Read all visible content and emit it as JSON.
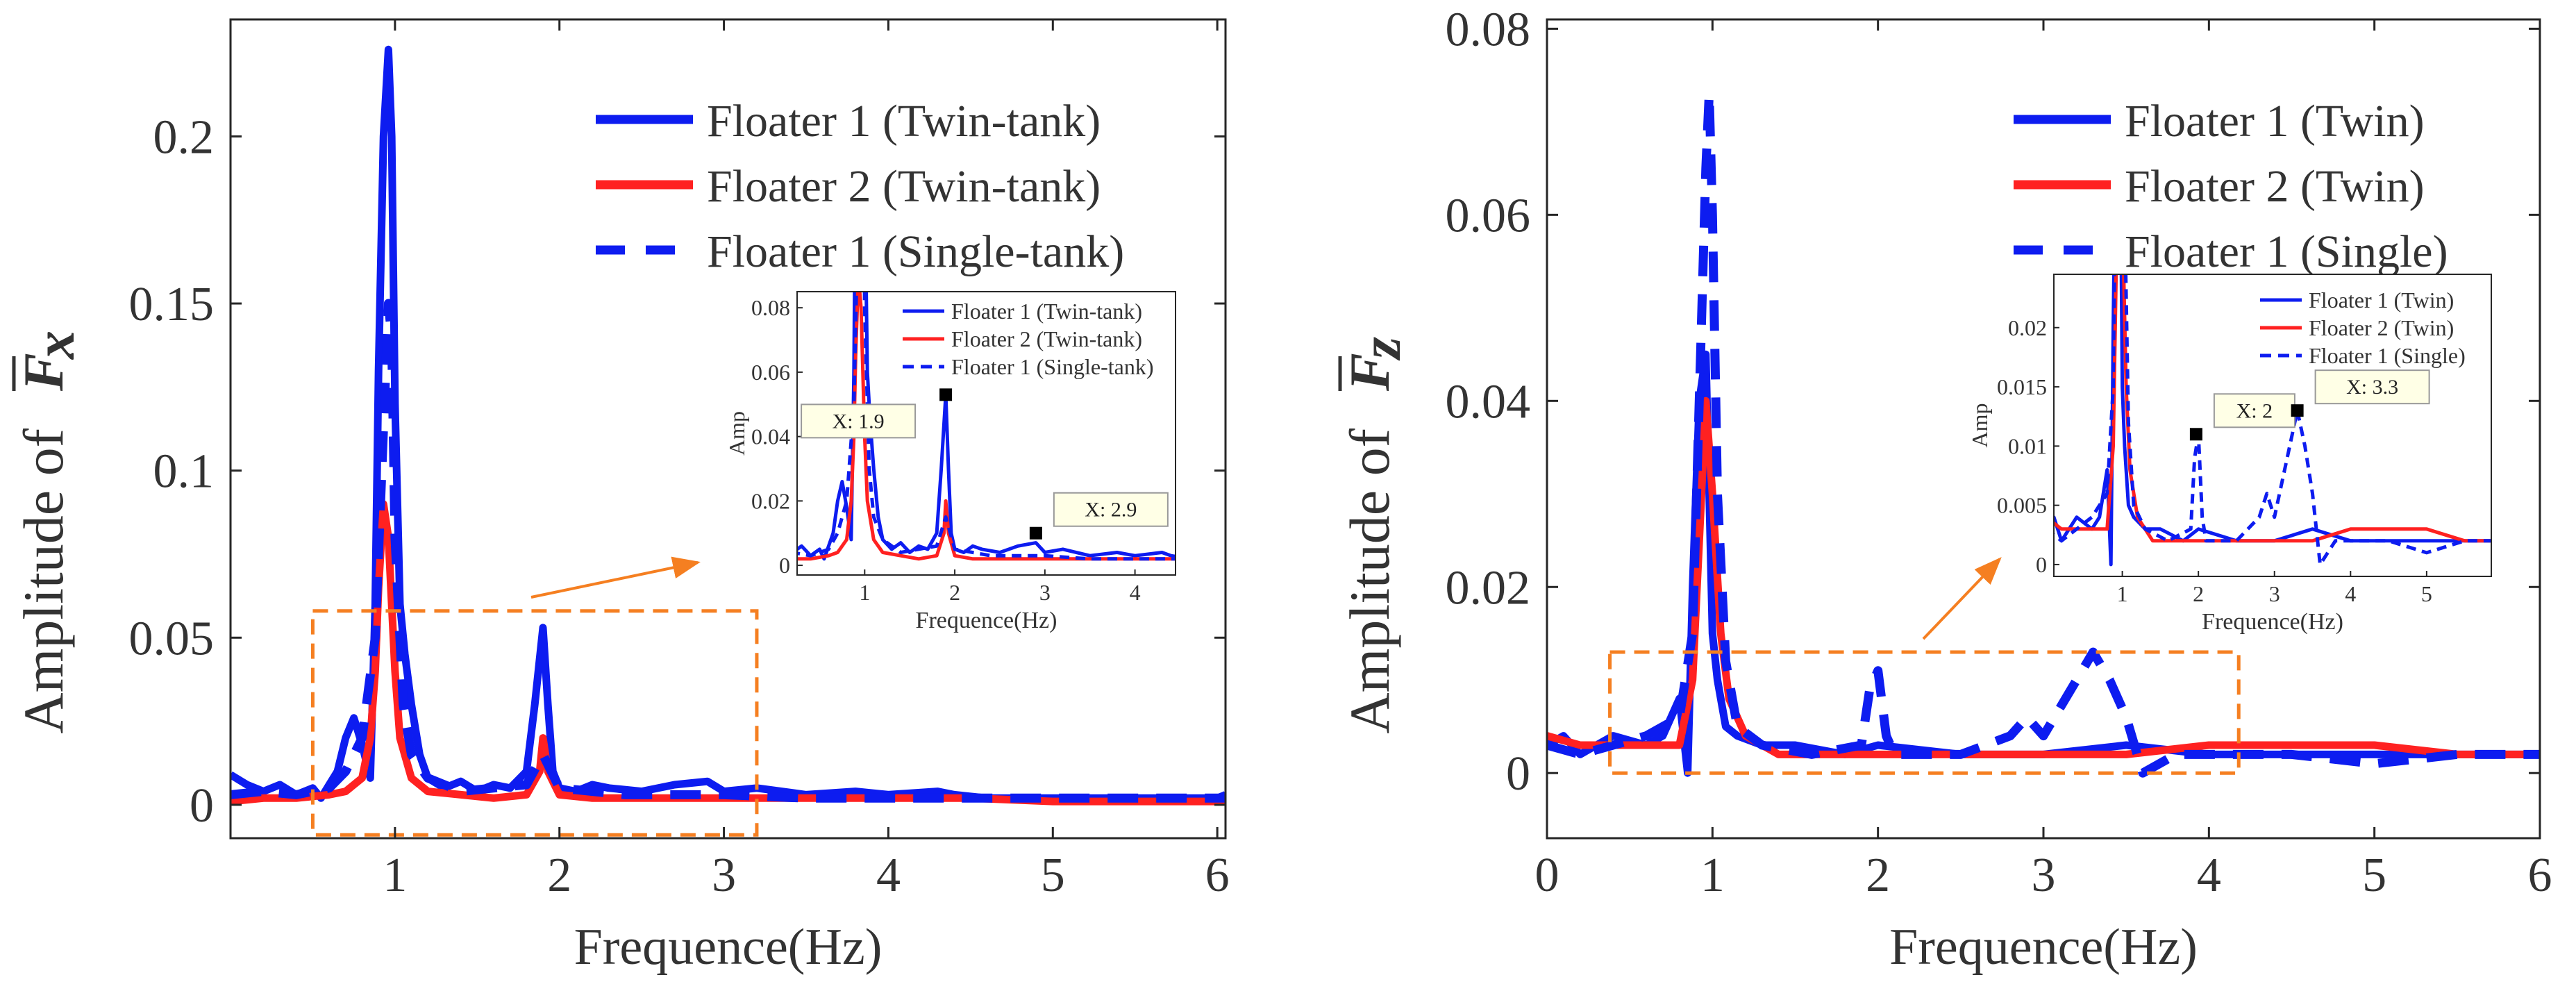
{
  "colors": {
    "blue": "#0d1cf0",
    "red": "#ff2121",
    "orange": "#f57f21",
    "axis": "#262626",
    "tip_bg": "#ffffe6"
  },
  "chart_data": [
    {
      "id": "left",
      "type": "line",
      "xlabel": "Frequence(Hz)",
      "ylabel_prefix": "Amplitude of",
      "ylabel_symbol": "F",
      "ylabel_subscript": "x",
      "xlim": [
        0,
        6.05
      ],
      "ylim": [
        -0.01,
        0.235
      ],
      "xticks": [
        {
          "v": 1,
          "label": "1"
        },
        {
          "v": 2,
          "label": "2"
        },
        {
          "v": 3,
          "label": "3"
        },
        {
          "v": 4,
          "label": "4"
        },
        {
          "v": 5,
          "label": "5"
        },
        {
          "v": 6,
          "label": "6"
        }
      ],
      "yticks": [
        {
          "v": 0,
          "label": "0"
        },
        {
          "v": 0.05,
          "label": "0.05"
        },
        {
          "v": 0.1,
          "label": "0.1"
        },
        {
          "v": 0.15,
          "label": "0.15"
        },
        {
          "v": 0.2,
          "label": "0.2"
        }
      ],
      "legend_position": "top-right",
      "series": [
        {
          "name": "Floater 1 (Twin-tank)",
          "color": "blue",
          "style": "solid",
          "x": [
            0,
            0.1,
            0.2,
            0.3,
            0.4,
            0.5,
            0.55,
            0.6,
            0.65,
            0.7,
            0.75,
            0.8,
            0.85,
            0.88,
            0.9,
            0.93,
            0.96,
            0.98,
            1.0,
            1.03,
            1.06,
            1.1,
            1.15,
            1.2,
            1.3,
            1.4,
            1.5,
            1.6,
            1.7,
            1.8,
            1.85,
            1.9,
            1.93,
            1.96,
            2.0,
            2.1,
            2.2,
            2.3,
            2.5,
            2.7,
            2.9,
            3.0,
            3.2,
            3.5,
            3.8,
            4.0,
            4.3,
            4.4,
            4.6,
            5.0,
            5.5,
            6.0,
            6.05
          ],
          "y": [
            0.009,
            0.006,
            0.004,
            0.006,
            0.003,
            0.005,
            0.002,
            0.006,
            0.01,
            0.02,
            0.026,
            0.018,
            0.008,
            0.06,
            0.13,
            0.2,
            0.226,
            0.2,
            0.12,
            0.06,
            0.045,
            0.03,
            0.015,
            0.008,
            0.005,
            0.007,
            0.004,
            0.006,
            0.005,
            0.01,
            0.03,
            0.053,
            0.03,
            0.01,
            0.005,
            0.004,
            0.006,
            0.005,
            0.004,
            0.006,
            0.007,
            0.004,
            0.005,
            0.003,
            0.004,
            0.003,
            0.004,
            0.003,
            0.002,
            0.002,
            0.002,
            0.002,
            0.003
          ]
        },
        {
          "name": "Floater 2 (Twin-tank)",
          "color": "red",
          "style": "solid",
          "x": [
            0,
            0.2,
            0.4,
            0.6,
            0.7,
            0.8,
            0.85,
            0.88,
            0.9,
            0.93,
            0.96,
            0.98,
            1.0,
            1.03,
            1.1,
            1.2,
            1.4,
            1.6,
            1.8,
            1.88,
            1.9,
            1.93,
            2.0,
            2.2,
            2.5,
            3.0,
            3.5,
            4.0,
            4.5,
            5.0,
            5.5,
            6.05
          ],
          "y": [
            0.001,
            0.002,
            0.002,
            0.003,
            0.004,
            0.008,
            0.02,
            0.04,
            0.065,
            0.09,
            0.08,
            0.06,
            0.04,
            0.02,
            0.008,
            0.004,
            0.003,
            0.002,
            0.003,
            0.01,
            0.02,
            0.01,
            0.003,
            0.002,
            0.002,
            0.002,
            0.002,
            0.002,
            0.002,
            0.001,
            0.001,
            0.001
          ]
        },
        {
          "name": "Floater 1 (Single-tank)",
          "color": "blue",
          "style": "dashed",
          "x": [
            0,
            0.2,
            0.4,
            0.6,
            0.7,
            0.8,
            0.88,
            0.92,
            0.96,
            0.98,
            1.0,
            1.05,
            1.1,
            1.2,
            1.4,
            1.8,
            1.9,
            2.0,
            2.4,
            3.0,
            3.5,
            4.0,
            4.5,
            5.0,
            5.5,
            6.05
          ],
          "y": [
            0.003,
            0.004,
            0.003,
            0.005,
            0.01,
            0.02,
            0.05,
            0.1,
            0.15,
            0.14,
            0.08,
            0.03,
            0.015,
            0.008,
            0.004,
            0.006,
            0.015,
            0.005,
            0.003,
            0.003,
            0.002,
            0.002,
            0.002,
            0.002,
            0.002,
            0.002
          ]
        }
      ],
      "zoom_box": {
        "x0": 0.5,
        "x1": 3.2,
        "y0": -0.009,
        "y1": 0.058
      },
      "inset": {
        "ylabel": "Amp",
        "xlabel": "Frequence(Hz)",
        "xlim": [
          0.25,
          4.45
        ],
        "ylim": [
          -0.003,
          0.085
        ],
        "xticks": [
          {
            "v": 1,
            "label": "1"
          },
          {
            "v": 2,
            "label": "2"
          },
          {
            "v": 3,
            "label": "3"
          },
          {
            "v": 4,
            "label": "4"
          }
        ],
        "yticks": [
          {
            "v": 0,
            "label": "0"
          },
          {
            "v": 0.02,
            "label": "0.02"
          },
          {
            "v": 0.04,
            "label": "0.04"
          },
          {
            "v": 0.06,
            "label": "0.06"
          },
          {
            "v": 0.08,
            "label": "0.08"
          }
        ],
        "legend": [
          "Floater 1 (Twin-tank)",
          "Floater 2 (Twin-tank)",
          "Floater 1 (Single-tank)"
        ],
        "datatips": [
          {
            "label": "X: 1.9",
            "x": 1.9,
            "y": 0.053,
            "side": "left"
          },
          {
            "label": "X: 2.9",
            "x": 2.9,
            "y": 0.01,
            "side": "right"
          }
        ]
      }
    },
    {
      "id": "right",
      "type": "line",
      "xlabel": "Frequence(Hz)",
      "ylabel_prefix": "Amplitude of",
      "ylabel_symbol": "F",
      "ylabel_subscript": "z",
      "xlim": [
        0,
        6
      ],
      "ylim": [
        -0.007,
        0.081
      ],
      "xticks": [
        {
          "v": 0,
          "label": "0"
        },
        {
          "v": 1,
          "label": "1"
        },
        {
          "v": 2,
          "label": "2"
        },
        {
          "v": 3,
          "label": "3"
        },
        {
          "v": 4,
          "label": "4"
        },
        {
          "v": 5,
          "label": "5"
        },
        {
          "v": 6,
          "label": "6"
        }
      ],
      "yticks": [
        {
          "v": 0,
          "label": "0"
        },
        {
          "v": 0.02,
          "label": "0.02"
        },
        {
          "v": 0.04,
          "label": "0.04"
        },
        {
          "v": 0.06,
          "label": "0.06"
        },
        {
          "v": 0.08,
          "label": "0.08"
        }
      ],
      "legend_position": "top-right",
      "series": [
        {
          "name": "Floater 1 (Twin)",
          "color": "blue",
          "style": "solid",
          "x": [
            0,
            0.1,
            0.2,
            0.4,
            0.6,
            0.7,
            0.8,
            0.85,
            0.88,
            0.92,
            0.96,
            0.98,
            1.0,
            1.03,
            1.08,
            1.15,
            1.3,
            1.5,
            1.8,
            2.0,
            2.5,
            3.0,
            3.5,
            4.0,
            4.5,
            5.0,
            5.5,
            6.0
          ],
          "y": [
            0.003,
            0.004,
            0.002,
            0.004,
            0.003,
            0.004,
            0.008,
            0.0,
            0.02,
            0.04,
            0.045,
            0.03,
            0.015,
            0.01,
            0.005,
            0.004,
            0.003,
            0.003,
            0.002,
            0.003,
            0.002,
            0.002,
            0.003,
            0.002,
            0.002,
            0.002,
            0.002,
            0.002
          ]
        },
        {
          "name": "Floater 2 (Twin)",
          "color": "red",
          "style": "solid",
          "x": [
            0,
            0.2,
            0.4,
            0.6,
            0.8,
            0.88,
            0.92,
            0.96,
            1.0,
            1.05,
            1.1,
            1.2,
            1.4,
            1.7,
            2.0,
            2.5,
            3.0,
            3.5,
            4.0,
            4.5,
            5.0,
            5.5,
            6.0
          ],
          "y": [
            0.004,
            0.003,
            0.003,
            0.003,
            0.003,
            0.01,
            0.025,
            0.04,
            0.03,
            0.015,
            0.008,
            0.004,
            0.002,
            0.002,
            0.002,
            0.002,
            0.002,
            0.002,
            0.003,
            0.003,
            0.003,
            0.002,
            0.002
          ]
        },
        {
          "name": "Floater 1 (Single)",
          "color": "blue",
          "style": "dashed",
          "x": [
            0,
            0.2,
            0.4,
            0.6,
            0.8,
            0.88,
            0.92,
            0.96,
            0.98,
            1.0,
            1.03,
            1.08,
            1.15,
            1.3,
            1.6,
            1.9,
            1.95,
            2.0,
            2.05,
            2.1,
            2.5,
            2.8,
            2.9,
            3.0,
            3.2,
            3.3,
            3.4,
            3.5,
            3.6,
            3.8,
            4.0,
            4.5,
            5.0,
            5.5,
            6.0
          ],
          "y": [
            0.003,
            0.002,
            0.003,
            0.004,
            0.006,
            0.015,
            0.04,
            0.065,
            0.073,
            0.06,
            0.03,
            0.012,
            0.005,
            0.003,
            0.002,
            0.003,
            0.009,
            0.011,
            0.004,
            0.002,
            0.002,
            0.004,
            0.006,
            0.004,
            0.01,
            0.013,
            0.01,
            0.006,
            0.0,
            0.002,
            0.002,
            0.002,
            0.001,
            0.002,
            0.002
          ]
        }
      ],
      "zoom_box": {
        "x0": 0.38,
        "x1": 4.18,
        "y0": 0.0,
        "y1": 0.013
      },
      "inset": {
        "ylabel": "Amp",
        "xlabel": "Frequence(Hz)",
        "xlim": [
          0.1,
          5.85
        ],
        "ylim": [
          -0.001,
          0.0245
        ],
        "xticks": [
          {
            "v": 1,
            "label": "1"
          },
          {
            "v": 2,
            "label": "2"
          },
          {
            "v": 3,
            "label": "3"
          },
          {
            "v": 4,
            "label": "4"
          },
          {
            "v": 5,
            "label": "5"
          }
        ],
        "yticks": [
          {
            "v": 0,
            "label": "0"
          },
          {
            "v": 0.005,
            "label": "0.005"
          },
          {
            "v": 0.01,
            "label": "0.01"
          },
          {
            "v": 0.015,
            "label": "0.015"
          },
          {
            "v": 0.02,
            "label": "0.02"
          }
        ],
        "legend": [
          "Floater 1 (Twin)",
          "Floater 2 (Twin)",
          "Floater 1 (Single)"
        ],
        "datatips": [
          {
            "label": "X: 2",
            "x": 1.97,
            "y": 0.011,
            "side": "right"
          },
          {
            "label": "X: 3.3",
            "x": 3.3,
            "y": 0.013,
            "side": "right"
          }
        ]
      }
    }
  ]
}
